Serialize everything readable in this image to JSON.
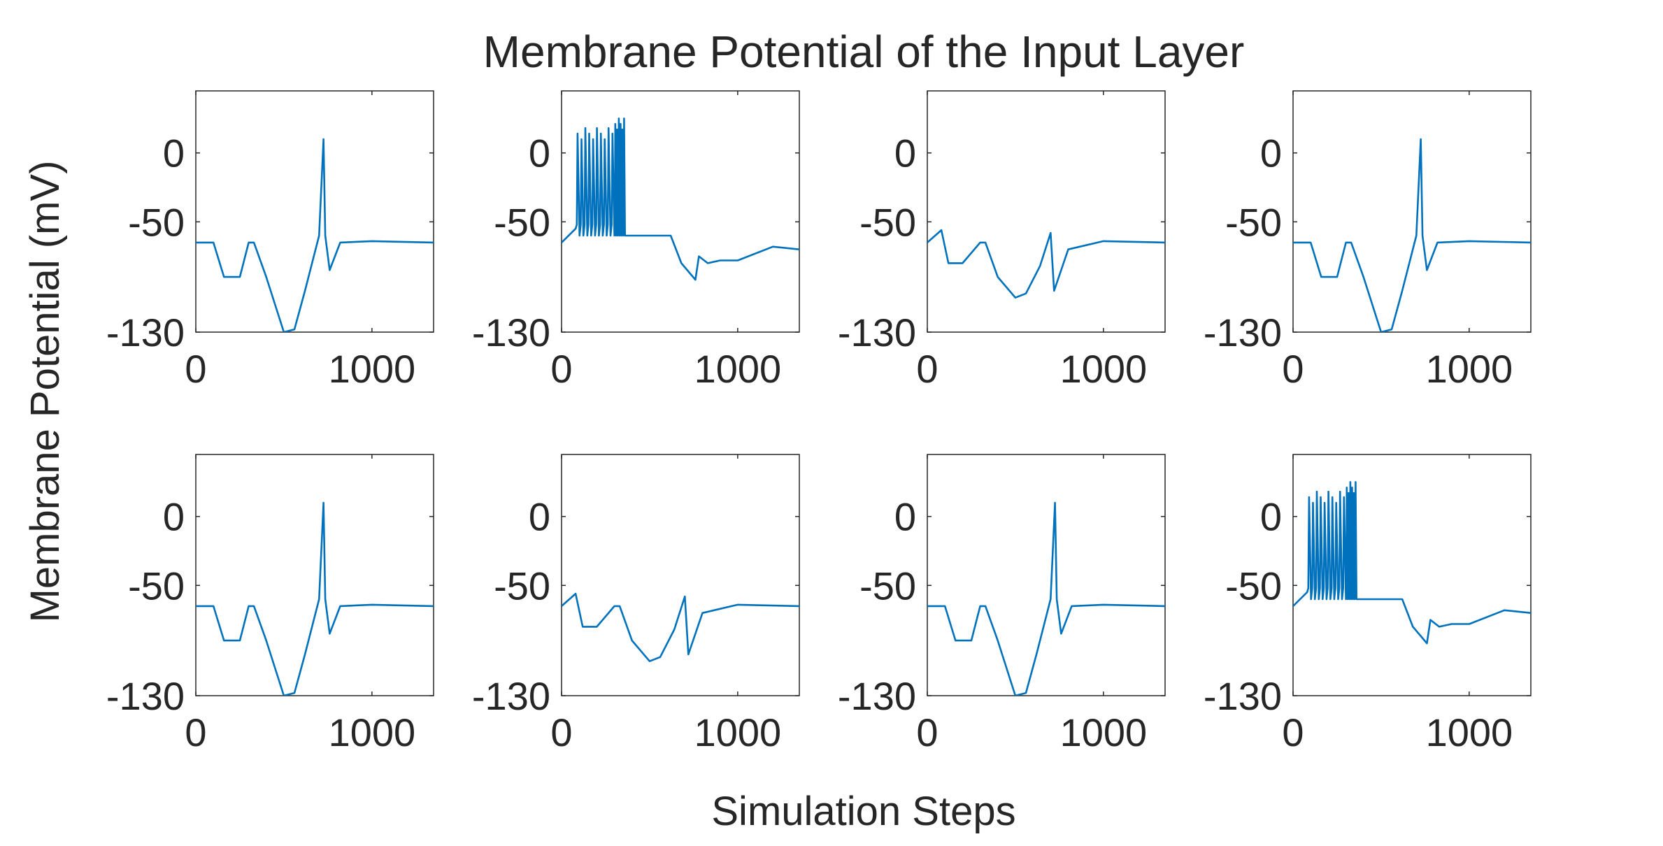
{
  "chart_data": {
    "type": "line",
    "title": "Membrane Potential of the Input Layer",
    "xlabel": "Simulation Steps",
    "ylabel": "Membrane Potential (mV)",
    "layout": "2x4 grid of subplots",
    "xlim": [
      0,
      1350
    ],
    "ylim": [
      -130,
      45
    ],
    "xticks": [
      0,
      1000
    ],
    "yticks": [
      -130,
      -50,
      0
    ],
    "grid": false,
    "line_color": "#0072BD",
    "text_color": "#262626",
    "trace_kinds": {
      "A": "hyperpolarize-then-single-spike",
      "B": "burst-firing-then-decay",
      "C": "hyperpolarize-no-spike"
    },
    "subplots": [
      {
        "row": 1,
        "col": 1,
        "trace": "A",
        "series": [
          {
            "x": [
              0,
              100,
              160,
              250,
              300,
              330,
              400,
              500,
              560,
              620,
              700,
              725,
              735,
              760,
              820,
              1000,
              1350
            ],
            "y": [
              -65,
              -65,
              -90,
              -90,
              -65,
              -65,
              -90,
              -130,
              -128,
              -100,
              -60,
              10,
              -60,
              -85,
              -65,
              -64,
              -65
            ]
          }
        ]
      },
      {
        "row": 1,
        "col": 2,
        "trace": "B",
        "series": [
          {
            "x": [
              0,
              80,
              300,
              360,
              620,
              680,
              760,
              780,
              830,
              900,
              1000,
              1200,
              1350
            ],
            "y": [
              -65,
              -55,
              [
                -60,
                18
              ],
              [
                -60,
                25
              ],
              -60,
              -80,
              -92,
              -75,
              -80,
              -78,
              -78,
              -68,
              -70
            ]
          }
        ]
      },
      {
        "row": 1,
        "col": 3,
        "trace": "C",
        "series": [
          {
            "x": [
              0,
              80,
              120,
              200,
              300,
              330,
              400,
              500,
              560,
              640,
              700,
              720,
              800,
              1000,
              1350
            ],
            "y": [
              -65,
              -56,
              -80,
              -80,
              -65,
              -65,
              -90,
              -105,
              -102,
              -82,
              -58,
              -100,
              -70,
              -64,
              -65
            ]
          }
        ]
      },
      {
        "row": 1,
        "col": 4,
        "trace": "A",
        "series": [
          {
            "x": [
              0,
              100,
              160,
              250,
              300,
              330,
              400,
              500,
              560,
              620,
              700,
              725,
              735,
              760,
              820,
              1000,
              1350
            ],
            "y": [
              -65,
              -65,
              -90,
              -90,
              -65,
              -65,
              -90,
              -130,
              -128,
              -100,
              -60,
              10,
              -60,
              -85,
              -65,
              -64,
              -65
            ]
          }
        ]
      },
      {
        "row": 2,
        "col": 1,
        "trace": "A",
        "series": [
          {
            "x": [
              0,
              100,
              160,
              250,
              300,
              330,
              400,
              500,
              560,
              620,
              700,
              725,
              735,
              760,
              820,
              1000,
              1350
            ],
            "y": [
              -65,
              -65,
              -90,
              -90,
              -65,
              -65,
              -90,
              -130,
              -128,
              -100,
              -60,
              10,
              -60,
              -85,
              -65,
              -64,
              -65
            ]
          }
        ]
      },
      {
        "row": 2,
        "col": 2,
        "trace": "C",
        "series": [
          {
            "x": [
              0,
              80,
              120,
              200,
              300,
              330,
              400,
              500,
              560,
              640,
              700,
              720,
              800,
              1000,
              1350
            ],
            "y": [
              -65,
              -56,
              -80,
              -80,
              -65,
              -65,
              -90,
              -105,
              -102,
              -82,
              -58,
              -100,
              -70,
              -64,
              -65
            ]
          }
        ]
      },
      {
        "row": 2,
        "col": 3,
        "trace": "A",
        "series": [
          {
            "x": [
              0,
              100,
              160,
              250,
              300,
              330,
              400,
              500,
              560,
              620,
              700,
              725,
              735,
              760,
              820,
              1000,
              1350
            ],
            "y": [
              -65,
              -65,
              -90,
              -90,
              -65,
              -65,
              -90,
              -130,
              -128,
              -100,
              -60,
              10,
              -60,
              -85,
              -65,
              -64,
              -65
            ]
          }
        ]
      },
      {
        "row": 2,
        "col": 4,
        "trace": "B",
        "series": [
          {
            "x": [
              0,
              80,
              300,
              360,
              620,
              680,
              760,
              780,
              830,
              900,
              1000,
              1200,
              1350
            ],
            "y": [
              -65,
              -55,
              [
                -60,
                18
              ],
              [
                -60,
                25
              ],
              -60,
              -80,
              -92,
              -75,
              -80,
              -78,
              -78,
              -68,
              -70
            ]
          }
        ]
      }
    ]
  }
}
